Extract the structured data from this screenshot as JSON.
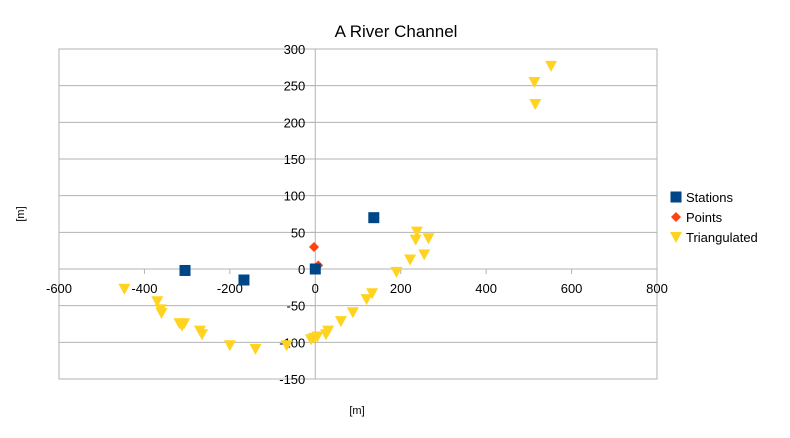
{
  "chart_data": {
    "type": "scatter",
    "title": "A River Channel",
    "xlabel": "[m]",
    "ylabel": "[m]",
    "xlim": [
      -600,
      800
    ],
    "ylim": [
      -150,
      300
    ],
    "xticks": [
      -600,
      -400,
      -200,
      0,
      200,
      400,
      600,
      800
    ],
    "yticks": [
      -150,
      -100,
      -50,
      0,
      50,
      100,
      150,
      200,
      250,
      300
    ],
    "grid": "horizontal",
    "legend_position": "right",
    "series": [
      {
        "name": "Stations",
        "marker": "square",
        "color": "#004586",
        "points": [
          {
            "x": -305,
            "y": -2
          },
          {
            "x": -167,
            "y": -15
          },
          {
            "x": 0,
            "y": 0
          },
          {
            "x": 137,
            "y": 70
          }
        ]
      },
      {
        "name": "Points",
        "marker": "diamond",
        "color": "#ff420e",
        "points": [
          {
            "x": -3,
            "y": 30
          },
          {
            "x": 7,
            "y": 5
          }
        ]
      },
      {
        "name": "Triangulated",
        "marker": "triangle-down",
        "color": "#ffd320",
        "points": [
          {
            "x": 552,
            "y": 277
          },
          {
            "x": 513,
            "y": 255
          },
          {
            "x": 515,
            "y": 225
          },
          {
            "x": -447,
            "y": -27
          },
          {
            "x": -370,
            "y": -44
          },
          {
            "x": -362,
            "y": -55
          },
          {
            "x": -360,
            "y": -60
          },
          {
            "x": -318,
            "y": -74
          },
          {
            "x": -312,
            "y": -77
          },
          {
            "x": -307,
            "y": -74
          },
          {
            "x": -270,
            "y": -84
          },
          {
            "x": -265,
            "y": -89
          },
          {
            "x": -200,
            "y": -104
          },
          {
            "x": -140,
            "y": -109
          },
          {
            "x": -67,
            "y": -104
          },
          {
            "x": -10,
            "y": -96
          },
          {
            "x": -3,
            "y": -94
          },
          {
            "x": 5,
            "y": -92
          },
          {
            "x": 25,
            "y": -89
          },
          {
            "x": 30,
            "y": -84
          },
          {
            "x": 60,
            "y": -71
          },
          {
            "x": 88,
            "y": -59
          },
          {
            "x": 120,
            "y": -41
          },
          {
            "x": 133,
            "y": -33
          },
          {
            "x": 190,
            "y": -4
          },
          {
            "x": 222,
            "y": 13
          },
          {
            "x": 235,
            "y": 40
          },
          {
            "x": 238,
            "y": 51
          },
          {
            "x": 255,
            "y": 20
          },
          {
            "x": 265,
            "y": 42
          }
        ]
      }
    ]
  }
}
